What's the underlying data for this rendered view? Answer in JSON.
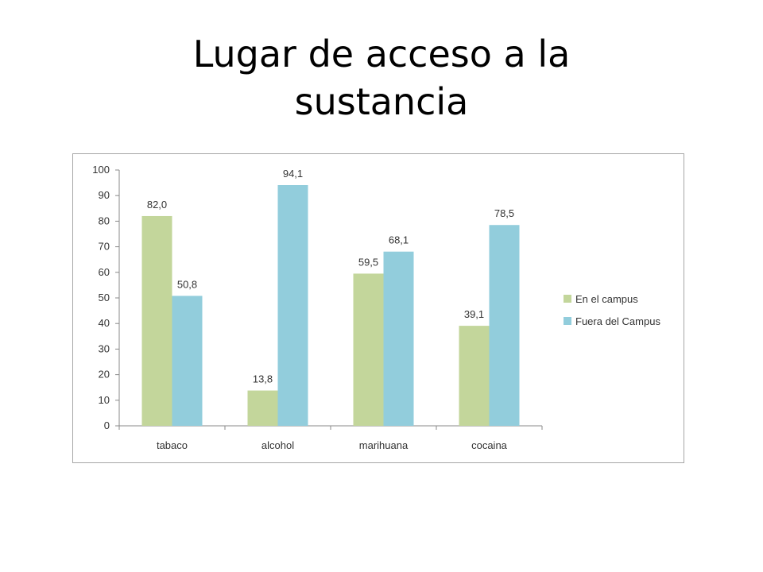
{
  "slide": {
    "title": "Lugar de acceso a la sustancia"
  },
  "chart_data": {
    "type": "bar",
    "title": "",
    "xlabel": "",
    "ylabel": "",
    "categories": [
      "tabaco",
      "alcohol",
      "marihuana",
      "cocaina"
    ],
    "series": [
      {
        "name": "En el campus",
        "values": [
          82.0,
          13.8,
          59.5,
          39.1
        ],
        "labels": [
          "82,0",
          "13,8",
          "59,5",
          "39,1"
        ],
        "color": "#c3d69b"
      },
      {
        "name": "Fuera del Campus",
        "values": [
          50.8,
          94.1,
          68.1,
          78.5
        ],
        "labels": [
          "50,8",
          "94,1",
          "68,1",
          "78,5"
        ],
        "color": "#92cddc"
      }
    ],
    "ylim": [
      0,
      100
    ],
    "yticks": [
      0,
      10,
      20,
      30,
      40,
      50,
      60,
      70,
      80,
      90,
      100
    ],
    "grid": false,
    "legend_position": "right"
  }
}
